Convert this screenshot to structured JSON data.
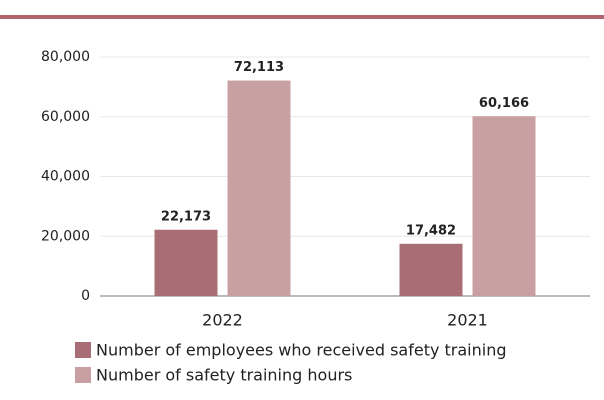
{
  "chart_data": {
    "type": "bar",
    "categories": [
      "2022",
      "2021"
    ],
    "series": [
      {
        "name": "Number of employees who received safety training",
        "color": "#a96e75",
        "values": [
          22173,
          17482
        ],
        "value_labels": [
          "22,173",
          "17,482"
        ]
      },
      {
        "name": "Number of safety training hours",
        "color": "#c9a0a2",
        "values": [
          72113,
          60166
        ],
        "value_labels": [
          "72,113",
          "60,166"
        ]
      }
    ],
    "ylim": [
      0,
      80000
    ],
    "yticks": [
      0,
      {
        "value": 20000,
        "label": "20,000"
      },
      {
        "value": 40000,
        "label": "40,000"
      },
      {
        "value": 60000,
        "label": "60,000"
      },
      {
        "value": 80000,
        "label": "80,000"
      }
    ],
    "grid": true,
    "legend": "bottom"
  }
}
